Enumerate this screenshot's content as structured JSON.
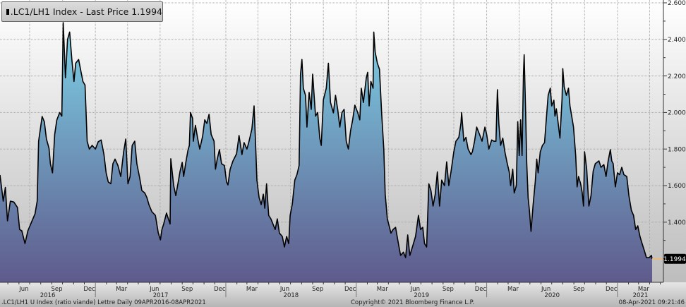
{
  "legend": {
    "marker_color": "#000000",
    "text": ".LC1/LH1 Index - Last Price 1.1994"
  },
  "footer": {
    "left": ".LC1/LH1 U Index (ratio viande) Lettre  Daily 09APR2016-08APR2021",
    "center": "Copyright© 2021 Bloomberg Finance L.P.",
    "right": "08-Apr-2021 09:21:46"
  },
  "colors": {
    "line": "#000000",
    "area_top": "#7dd4e8",
    "area_bottom": "#5f5a8c",
    "last_price_marker": "#f0b878",
    "last_price_badge": "#000000"
  },
  "chart_data": {
    "type": "area",
    "title": "",
    "series_name": ".LC1/LH1 Index",
    "last_price": 1.1994,
    "last_price_label": "1.1994",
    "xlim": [
      "2016-04-09",
      "2021-04-08"
    ],
    "ylim": [
      1.1,
      2.6
    ],
    "y_axis_position": "right",
    "grid": true,
    "yticks": [
      {
        "value": 2.6,
        "label": "2.6000"
      },
      {
        "value": 2.4,
        "label": "2.4000"
      },
      {
        "value": 2.2,
        "label": "2.2000"
      },
      {
        "value": 2.0,
        "label": "2.0000"
      },
      {
        "value": 1.8,
        "label": "1.8000"
      },
      {
        "value": 1.6,
        "label": "1.6000"
      },
      {
        "value": 1.4,
        "label": "1.4000"
      }
    ],
    "month_ticks": [
      {
        "label": "Jun",
        "date": "2016-06-15"
      },
      {
        "label": "Sep",
        "date": "2016-09-15"
      },
      {
        "label": "Dec",
        "date": "2016-12-15"
      },
      {
        "label": "Mar",
        "date": "2017-03-15"
      },
      {
        "label": "Jun",
        "date": "2017-06-15"
      },
      {
        "label": "Sep",
        "date": "2017-09-15"
      },
      {
        "label": "Dec",
        "date": "2017-12-15"
      },
      {
        "label": "Mar",
        "date": "2018-03-15"
      },
      {
        "label": "Jun",
        "date": "2018-06-15"
      },
      {
        "label": "Sep",
        "date": "2018-09-15"
      },
      {
        "label": "Dec",
        "date": "2018-12-15"
      },
      {
        "label": "Mar",
        "date": "2019-03-15"
      },
      {
        "label": "Jun",
        "date": "2019-06-15"
      },
      {
        "label": "Sep",
        "date": "2019-09-15"
      },
      {
        "label": "Dec",
        "date": "2019-12-15"
      },
      {
        "label": "Mar",
        "date": "2020-03-15"
      },
      {
        "label": "Jun",
        "date": "2020-06-15"
      },
      {
        "label": "Sep",
        "date": "2020-09-15"
      },
      {
        "label": "Dec",
        "date": "2020-12-15"
      },
      {
        "label": "Mar",
        "date": "2021-03-15"
      }
    ],
    "year_labels": [
      "2016",
      "2017",
      "2018",
      "2019",
      "2020",
      "2021"
    ],
    "points": [
      [
        "2016-04-09",
        1.658
      ],
      [
        "2016-04-18",
        1.515
      ],
      [
        "2016-04-24",
        1.59
      ],
      [
        "2016-04-30",
        1.407
      ],
      [
        "2016-05-08",
        1.515
      ],
      [
        "2016-05-18",
        1.51
      ],
      [
        "2016-05-28",
        1.48
      ],
      [
        "2016-06-03",
        1.36
      ],
      [
        "2016-06-09",
        1.353
      ],
      [
        "2016-06-14",
        1.314
      ],
      [
        "2016-06-18",
        1.283
      ],
      [
        "2016-06-26",
        1.353
      ],
      [
        "2016-07-06",
        1.4
      ],
      [
        "2016-07-16",
        1.445
      ],
      [
        "2016-07-22",
        1.515
      ],
      [
        "2016-07-26",
        1.843
      ],
      [
        "2016-08-05",
        1.978
      ],
      [
        "2016-08-11",
        1.95
      ],
      [
        "2016-08-17",
        1.855
      ],
      [
        "2016-08-24",
        1.805
      ],
      [
        "2016-08-28",
        1.72
      ],
      [
        "2016-09-03",
        1.67
      ],
      [
        "2016-09-09",
        1.88
      ],
      [
        "2016-09-15",
        1.959
      ],
      [
        "2016-09-23",
        2.0
      ],
      [
        "2016-09-29",
        1.98
      ],
      [
        "2016-10-03",
        2.492
      ],
      [
        "2016-10-09",
        2.19
      ],
      [
        "2016-10-15",
        2.4
      ],
      [
        "2016-10-21",
        2.44
      ],
      [
        "2016-10-27",
        2.29
      ],
      [
        "2016-11-02",
        2.17
      ],
      [
        "2016-11-07",
        2.27
      ],
      [
        "2016-11-15",
        2.29
      ],
      [
        "2016-11-21",
        2.23
      ],
      [
        "2016-11-27",
        2.17
      ],
      [
        "2016-12-03",
        2.15
      ],
      [
        "2016-12-09",
        1.843
      ],
      [
        "2016-12-15",
        1.8
      ],
      [
        "2016-12-23",
        1.82
      ],
      [
        "2017-01-01",
        1.8
      ],
      [
        "2017-01-09",
        1.84
      ],
      [
        "2017-01-17",
        1.85
      ],
      [
        "2017-01-25",
        1.77
      ],
      [
        "2017-01-31",
        1.67
      ],
      [
        "2017-02-06",
        1.62
      ],
      [
        "2017-02-13",
        1.61
      ],
      [
        "2017-02-19",
        1.72
      ],
      [
        "2017-02-25",
        1.745
      ],
      [
        "2017-03-05",
        1.71
      ],
      [
        "2017-03-13",
        1.65
      ],
      [
        "2017-03-21",
        1.785
      ],
      [
        "2017-03-27",
        1.855
      ],
      [
        "2017-04-02",
        1.61
      ],
      [
        "2017-04-08",
        1.65
      ],
      [
        "2017-04-14",
        1.82
      ],
      [
        "2017-04-21",
        1.843
      ],
      [
        "2017-04-27",
        1.72
      ],
      [
        "2017-05-05",
        1.64
      ],
      [
        "2017-05-11",
        1.573
      ],
      [
        "2017-05-19",
        1.56
      ],
      [
        "2017-05-25",
        1.535
      ],
      [
        "2017-05-31",
        1.495
      ],
      [
        "2017-06-08",
        1.457
      ],
      [
        "2017-06-18",
        1.437
      ],
      [
        "2017-06-26",
        1.34
      ],
      [
        "2017-07-02",
        1.303
      ],
      [
        "2017-07-06",
        1.36
      ],
      [
        "2017-07-11",
        1.39
      ],
      [
        "2017-07-19",
        1.45
      ],
      [
        "2017-07-29",
        1.39
      ],
      [
        "2017-07-31",
        1.747
      ],
      [
        "2017-08-08",
        1.6
      ],
      [
        "2017-08-14",
        1.545
      ],
      [
        "2017-08-20",
        1.61
      ],
      [
        "2017-08-26",
        1.68
      ],
      [
        "2017-09-01",
        1.727
      ],
      [
        "2017-09-05",
        1.65
      ],
      [
        "2017-09-11",
        1.727
      ],
      [
        "2017-09-17",
        1.793
      ],
      [
        "2017-09-21",
        1.82
      ],
      [
        "2017-09-24",
        2.0
      ],
      [
        "2017-09-30",
        1.967
      ],
      [
        "2017-10-02",
        1.843
      ],
      [
        "2017-10-08",
        1.93
      ],
      [
        "2017-10-14",
        1.86
      ],
      [
        "2017-10-20",
        1.8
      ],
      [
        "2017-10-28",
        1.87
      ],
      [
        "2017-11-03",
        1.96
      ],
      [
        "2017-11-09",
        1.94
      ],
      [
        "2017-11-15",
        1.99
      ],
      [
        "2017-11-21",
        1.88
      ],
      [
        "2017-11-29",
        1.843
      ],
      [
        "2017-12-03",
        1.69
      ],
      [
        "2017-12-08",
        1.745
      ],
      [
        "2017-12-14",
        1.797
      ],
      [
        "2017-12-20",
        1.72
      ],
      [
        "2017-12-28",
        1.71
      ],
      [
        "2018-01-03",
        1.62
      ],
      [
        "2018-01-07",
        1.604
      ],
      [
        "2018-01-13",
        1.69
      ],
      [
        "2018-01-21",
        1.735
      ],
      [
        "2018-01-31",
        1.774
      ],
      [
        "2018-02-07",
        1.874
      ],
      [
        "2018-02-15",
        1.77
      ],
      [
        "2018-02-21",
        1.835
      ],
      [
        "2018-03-01",
        1.8
      ],
      [
        "2018-03-07",
        1.843
      ],
      [
        "2018-03-15",
        1.91
      ],
      [
        "2018-03-21",
        2.036
      ],
      [
        "2018-03-25",
        1.843
      ],
      [
        "2018-03-29",
        1.63
      ],
      [
        "2018-04-04",
        1.535
      ],
      [
        "2018-04-10",
        1.496
      ],
      [
        "2018-04-16",
        1.553
      ],
      [
        "2018-04-20",
        1.476
      ],
      [
        "2018-04-25",
        1.61
      ],
      [
        "2018-05-01",
        1.437
      ],
      [
        "2018-05-07",
        1.418
      ],
      [
        "2018-05-13",
        1.39
      ],
      [
        "2018-05-19",
        1.36
      ],
      [
        "2018-05-25",
        1.418
      ],
      [
        "2018-05-31",
        1.34
      ],
      [
        "2018-06-08",
        1.322
      ],
      [
        "2018-06-14",
        1.264
      ],
      [
        "2018-06-20",
        1.322
      ],
      [
        "2018-06-26",
        1.283
      ],
      [
        "2018-06-30",
        1.437
      ],
      [
        "2018-07-06",
        1.5
      ],
      [
        "2018-07-13",
        1.63
      ],
      [
        "2018-07-19",
        1.66
      ],
      [
        "2018-07-25",
        1.71
      ],
      [
        "2018-07-29",
        2.21
      ],
      [
        "2018-08-02",
        2.29
      ],
      [
        "2018-08-06",
        2.133
      ],
      [
        "2018-08-12",
        2.094
      ],
      [
        "2018-08-16",
        1.92
      ],
      [
        "2018-08-22",
        2.11
      ],
      [
        "2018-08-28",
        2.017
      ],
      [
        "2018-09-01",
        2.21
      ],
      [
        "2018-09-09",
        1.98
      ],
      [
        "2018-09-15",
        2.0
      ],
      [
        "2018-09-21",
        1.86
      ],
      [
        "2018-09-25",
        1.82
      ],
      [
        "2018-10-01",
        2.07
      ],
      [
        "2018-10-09",
        2.133
      ],
      [
        "2018-10-15",
        2.27
      ],
      [
        "2018-10-21",
        2.055
      ],
      [
        "2018-10-29",
        1.998
      ],
      [
        "2018-11-04",
        2.094
      ],
      [
        "2018-11-10",
        2.017
      ],
      [
        "2018-11-16",
        1.92
      ],
      [
        "2018-11-22",
        2.0
      ],
      [
        "2018-11-28",
        2.017
      ],
      [
        "2018-12-04",
        1.843
      ],
      [
        "2018-12-10",
        1.8
      ],
      [
        "2018-12-16",
        1.9
      ],
      [
        "2018-12-22",
        1.96
      ],
      [
        "2018-12-28",
        2.04
      ],
      [
        "2019-01-05",
        2.0
      ],
      [
        "2019-01-11",
        1.96
      ],
      [
        "2019-01-15",
        2.133
      ],
      [
        "2019-01-21",
        2.055
      ],
      [
        "2019-01-29",
        2.19
      ],
      [
        "2019-02-02",
        2.22
      ],
      [
        "2019-02-06",
        2.036
      ],
      [
        "2019-02-11",
        2.17
      ],
      [
        "2019-02-17",
        2.133
      ],
      [
        "2019-02-19",
        2.44
      ],
      [
        "2019-02-23",
        2.33
      ],
      [
        "2019-03-01",
        2.27
      ],
      [
        "2019-03-07",
        2.236
      ],
      [
        "2019-03-13",
        2.0
      ],
      [
        "2019-03-19",
        1.8
      ],
      [
        "2019-03-23",
        1.553
      ],
      [
        "2019-03-29",
        1.418
      ],
      [
        "2019-04-04",
        1.372
      ],
      [
        "2019-04-08",
        1.34
      ],
      [
        "2019-04-14",
        1.36
      ],
      [
        "2019-04-21",
        1.372
      ],
      [
        "2019-04-29",
        1.283
      ],
      [
        "2019-05-05",
        1.218
      ],
      [
        "2019-05-13",
        1.236
      ],
      [
        "2019-05-19",
        1.206
      ],
      [
        "2019-05-25",
        1.33
      ],
      [
        "2019-05-31",
        1.218
      ],
      [
        "2019-06-08",
        1.27
      ],
      [
        "2019-06-16",
        1.322
      ],
      [
        "2019-06-24",
        1.437
      ],
      [
        "2019-06-30",
        1.36
      ],
      [
        "2019-07-06",
        1.372
      ],
      [
        "2019-07-11",
        1.283
      ],
      [
        "2019-07-17",
        1.264
      ],
      [
        "2019-07-23",
        1.61
      ],
      [
        "2019-07-29",
        1.573
      ],
      [
        "2019-08-04",
        1.488
      ],
      [
        "2019-08-10",
        1.553
      ],
      [
        "2019-08-16",
        1.675
      ],
      [
        "2019-08-22",
        1.488
      ],
      [
        "2019-08-28",
        1.63
      ],
      [
        "2019-09-05",
        1.6
      ],
      [
        "2019-09-11",
        1.73
      ],
      [
        "2019-09-17",
        1.6
      ],
      [
        "2019-09-23",
        1.675
      ],
      [
        "2019-10-01",
        1.785
      ],
      [
        "2019-10-07",
        1.843
      ],
      [
        "2019-10-15",
        1.864
      ],
      [
        "2019-10-21",
        1.94
      ],
      [
        "2019-10-23",
        2.0
      ],
      [
        "2019-10-29",
        1.843
      ],
      [
        "2019-11-04",
        1.864
      ],
      [
        "2019-11-10",
        1.8
      ],
      [
        "2019-11-18",
        1.77
      ],
      [
        "2019-11-22",
        1.785
      ],
      [
        "2019-11-28",
        1.843
      ],
      [
        "2019-12-04",
        1.92
      ],
      [
        "2019-12-12",
        1.88
      ],
      [
        "2019-12-19",
        1.843
      ],
      [
        "2019-12-27",
        1.92
      ],
      [
        "2020-01-01",
        1.88
      ],
      [
        "2020-01-07",
        1.8
      ],
      [
        "2020-01-15",
        1.85
      ],
      [
        "2020-01-21",
        1.843
      ],
      [
        "2020-01-27",
        1.843
      ],
      [
        "2020-01-31",
        2.125
      ],
      [
        "2020-02-04",
        1.94
      ],
      [
        "2020-02-09",
        1.82
      ],
      [
        "2020-02-15",
        1.86
      ],
      [
        "2020-02-21",
        1.785
      ],
      [
        "2020-02-27",
        1.727
      ],
      [
        "2020-03-04",
        1.675
      ],
      [
        "2020-03-08",
        1.6
      ],
      [
        "2020-03-14",
        1.69
      ],
      [
        "2020-03-18",
        1.56
      ],
      [
        "2020-03-24",
        1.6
      ],
      [
        "2020-03-28",
        1.95
      ],
      [
        "2020-04-01",
        1.765
      ],
      [
        "2020-04-05",
        1.96
      ],
      [
        "2020-04-09",
        1.765
      ],
      [
        "2020-04-13",
        2.21
      ],
      [
        "2020-04-15",
        2.316
      ],
      [
        "2020-04-19",
        2.0
      ],
      [
        "2020-04-22",
        1.727
      ],
      [
        "2020-04-26",
        1.535
      ],
      [
        "2020-04-30",
        1.457
      ],
      [
        "2020-05-04",
        1.35
      ],
      [
        "2020-05-10",
        1.496
      ],
      [
        "2020-05-16",
        1.62
      ],
      [
        "2020-05-20",
        1.745
      ],
      [
        "2020-05-24",
        1.67
      ],
      [
        "2020-05-30",
        1.785
      ],
      [
        "2020-06-05",
        1.82
      ],
      [
        "2020-06-11",
        1.835
      ],
      [
        "2020-06-15",
        1.94
      ],
      [
        "2020-06-21",
        2.094
      ],
      [
        "2020-06-27",
        2.133
      ],
      [
        "2020-07-01",
        2.036
      ],
      [
        "2020-07-07",
        2.067
      ],
      [
        "2020-07-10",
        1.98
      ],
      [
        "2020-07-14",
        2.02
      ],
      [
        "2020-07-18",
        1.96
      ],
      [
        "2020-07-24",
        1.86
      ],
      [
        "2020-07-30",
        2.075
      ],
      [
        "2020-08-01",
        2.24
      ],
      [
        "2020-08-05",
        2.14
      ],
      [
        "2020-08-11",
        2.094
      ],
      [
        "2020-08-17",
        2.133
      ],
      [
        "2020-08-21",
        2.036
      ],
      [
        "2020-08-27",
        1.967
      ],
      [
        "2020-08-31",
        1.92
      ],
      [
        "2020-09-06",
        1.765
      ],
      [
        "2020-09-10",
        1.593
      ],
      [
        "2020-09-14",
        1.65
      ],
      [
        "2020-09-20",
        1.61
      ],
      [
        "2020-09-24",
        1.565
      ],
      [
        "2020-09-28",
        1.488
      ],
      [
        "2020-10-01",
        1.785
      ],
      [
        "2020-10-07",
        1.69
      ],
      [
        "2020-10-13",
        1.488
      ],
      [
        "2020-10-19",
        1.545
      ],
      [
        "2020-10-25",
        1.68
      ],
      [
        "2020-10-31",
        1.72
      ],
      [
        "2020-11-10",
        1.735
      ],
      [
        "2020-11-16",
        1.7
      ],
      [
        "2020-11-24",
        1.715
      ],
      [
        "2020-11-30",
        1.65
      ],
      [
        "2020-12-06",
        1.735
      ],
      [
        "2020-12-12",
        1.797
      ],
      [
        "2020-12-16",
        1.735
      ],
      [
        "2020-12-20",
        1.72
      ],
      [
        "2020-12-26",
        1.593
      ],
      [
        "2021-01-01",
        1.67
      ],
      [
        "2021-01-07",
        1.66
      ],
      [
        "2021-01-13",
        1.7
      ],
      [
        "2021-01-19",
        1.66
      ],
      [
        "2021-01-27",
        1.65
      ],
      [
        "2021-02-02",
        1.545
      ],
      [
        "2021-02-09",
        1.465
      ],
      [
        "2021-02-15",
        1.437
      ],
      [
        "2021-02-21",
        1.36
      ],
      [
        "2021-02-27",
        1.38
      ],
      [
        "2021-03-05",
        1.322
      ],
      [
        "2021-03-11",
        1.283
      ],
      [
        "2021-03-17",
        1.245
      ],
      [
        "2021-03-23",
        1.206
      ],
      [
        "2021-03-31",
        1.206
      ],
      [
        "2021-04-06",
        1.218
      ],
      [
        "2021-04-08",
        1.1994
      ]
    ]
  }
}
